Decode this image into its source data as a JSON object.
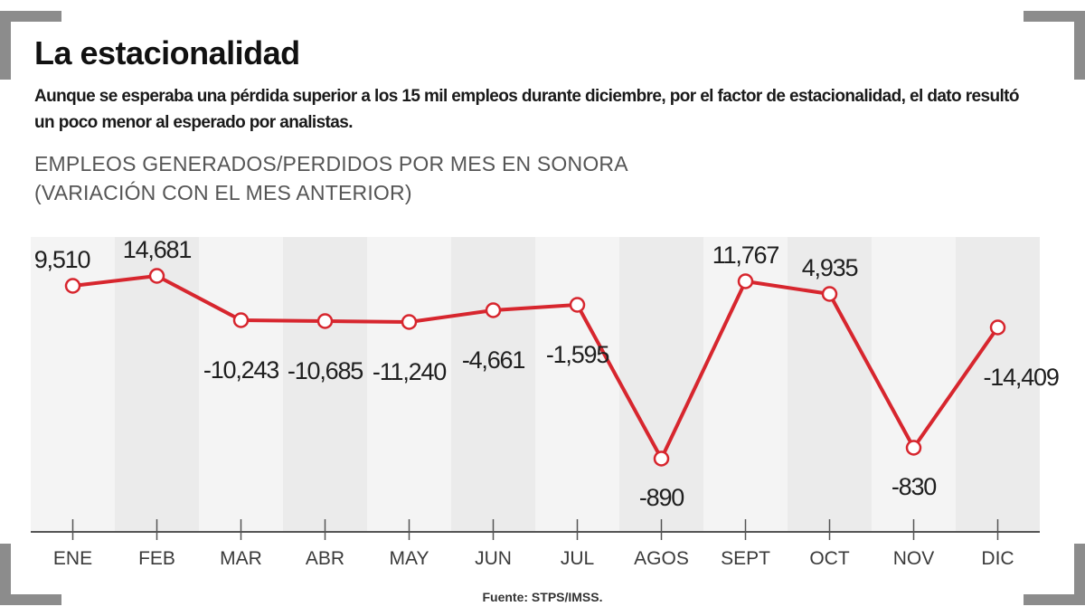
{
  "title": "La estacionalidad",
  "subtitle": "Aunque se esperaba una pérdida superior a los 15 mil empleos durante diciembre, por el factor de estacionalidad, el dato resultó un poco menor al esperado por analistas.",
  "chart_title_line1": "EMPLEOS GENERADOS/PERDIDOS POR MES EN SONORA",
  "chart_title_line2": "(VARIACIÓN CON EL MES ANTERIOR)",
  "source": "Fuente: STPS/IMSS.",
  "colors": {
    "line": "#d7262e",
    "marker_fill": "#ffffff",
    "band_light": "#f4f4f4",
    "band_dark": "#ebebeb",
    "axis": "#555555",
    "corner_brackets": "#8c8c8c"
  },
  "chart_data": {
    "type": "line",
    "title": "EMPLEOS GENERADOS/PERDIDOS POR MES EN SONORA (VARIACIÓN CON EL MES ANTERIOR)",
    "categories": [
      "ENE",
      "FEB",
      "MAR",
      "ABR",
      "MAY",
      "JUN",
      "JUL",
      "AGOS",
      "SEPT",
      "OCT",
      "NOV",
      "DIC"
    ],
    "values": [
      9510,
      14681,
      -10243,
      -10685,
      -11240,
      -4661,
      -1595,
      -890,
      11767,
      4935,
      -830,
      -14409
    ],
    "data_labels": [
      "9,510",
      "14,681",
      "-10,243",
      "-10,685",
      "-11,240",
      "-4,661",
      "-1,595",
      "-890",
      "11,767",
      "4,935",
      "-830",
      "-14,409"
    ],
    "label_placement": [
      "above",
      "above",
      "below",
      "below",
      "below",
      "below",
      "below",
      "below",
      "above",
      "above",
      "below",
      "below"
    ],
    "xlabel": "",
    "ylabel": "",
    "grid": false,
    "legend": "none"
  }
}
